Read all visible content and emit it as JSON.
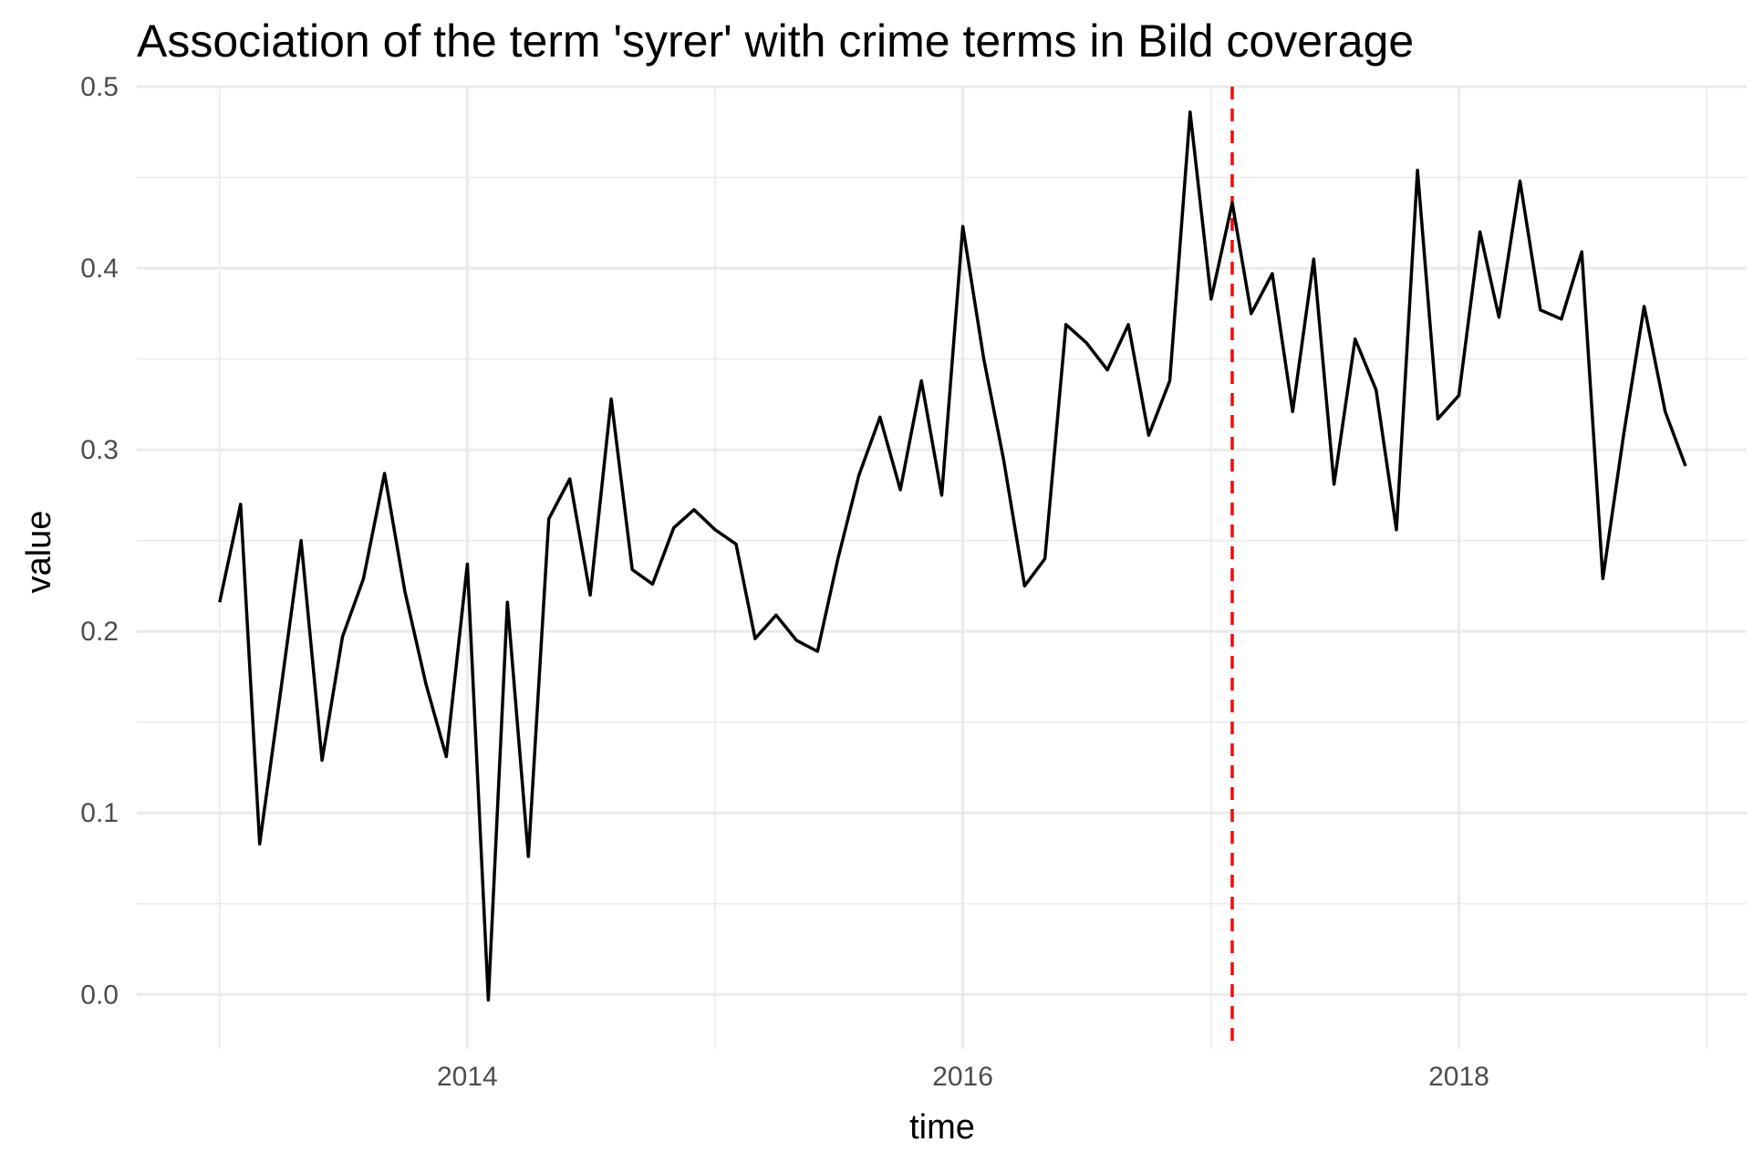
{
  "chart_data": {
    "type": "line",
    "title": "Association of the term 'syrer' with crime terms in Bild coverage",
    "xlabel": "time",
    "ylabel": "value",
    "xlim": [
      "2012-09-01",
      "2019-03-01"
    ],
    "ylim": [
      -0.03,
      0.5
    ],
    "x_ticks": [
      {
        "date": "2014-01-01",
        "label": "2014"
      },
      {
        "date": "2016-01-01",
        "label": "2016"
      },
      {
        "date": "2018-01-01",
        "label": "2018"
      }
    ],
    "y_ticks": [
      {
        "value": 0.0,
        "label": "0.0"
      },
      {
        "value": 0.1,
        "label": "0.1"
      },
      {
        "value": 0.2,
        "label": "0.2"
      },
      {
        "value": 0.3,
        "label": "0.3"
      },
      {
        "value": 0.4,
        "label": "0.4"
      },
      {
        "value": 0.5,
        "label": "0.5"
      }
    ],
    "grid": true,
    "legend": "none",
    "line_color": "#000000",
    "vertical_reference": {
      "date": "2017-02-01",
      "color": "#ff0000",
      "style": "dashed"
    },
    "series": [
      {
        "x": [
          "2013-01-01",
          "2013-02-01",
          "2013-03-01",
          "2013-04-01",
          "2013-05-01",
          "2013-06-01",
          "2013-07-01",
          "2013-08-01",
          "2013-09-01",
          "2013-10-01",
          "2013-11-01",
          "2013-12-01",
          "2014-01-01",
          "2014-02-01",
          "2014-03-01",
          "2014-04-01",
          "2014-05-01",
          "2014-06-01",
          "2014-07-01",
          "2014-08-01",
          "2014-09-01",
          "2014-10-01",
          "2014-11-01",
          "2014-12-01",
          "2015-01-01",
          "2015-02-01",
          "2015-03-01",
          "2015-04-01",
          "2015-05-01",
          "2015-06-01",
          "2015-07-01",
          "2015-08-01",
          "2015-09-01",
          "2015-10-01",
          "2015-11-01",
          "2015-12-01",
          "2016-01-01",
          "2016-02-01",
          "2016-03-01",
          "2016-04-01",
          "2016-05-01",
          "2016-06-01",
          "2016-07-01",
          "2016-08-01",
          "2016-09-01",
          "2016-10-01",
          "2016-11-01",
          "2016-12-01",
          "2017-01-01",
          "2017-02-01",
          "2017-03-01",
          "2017-04-01",
          "2017-05-01",
          "2017-06-01",
          "2017-07-01",
          "2017-08-01",
          "2017-09-01",
          "2017-10-01",
          "2017-11-01",
          "2017-12-01",
          "2018-01-01",
          "2018-02-01",
          "2018-03-01",
          "2018-04-01",
          "2018-05-01",
          "2018-06-01",
          "2018-07-01",
          "2018-08-01",
          "2018-09-01",
          "2018-10-01",
          "2018-11-01",
          "2018-12-01"
        ],
        "values": [
          0.216,
          0.27,
          0.083,
          0.167,
          0.25,
          0.129,
          0.197,
          0.229,
          0.287,
          0.222,
          0.171,
          0.131,
          0.237,
          -0.003,
          0.216,
          0.076,
          0.262,
          0.284,
          0.22,
          0.328,
          0.234,
          0.226,
          0.257,
          0.267,
          0.256,
          0.248,
          0.196,
          0.209,
          0.195,
          0.189,
          0.24,
          0.286,
          0.318,
          0.278,
          0.338,
          0.275,
          0.423,
          0.35,
          0.295,
          0.225,
          0.24,
          0.369,
          0.359,
          0.344,
          0.369,
          0.308,
          0.338,
          0.486,
          0.383,
          0.436,
          0.375,
          0.397,
          0.321,
          0.405,
          0.281,
          0.361,
          0.333,
          0.256,
          0.454,
          0.317,
          0.33,
          0.42,
          0.373,
          0.448,
          0.377,
          0.372,
          0.409,
          0.229,
          0.309,
          0.379,
          0.321,
          0.291
        ]
      }
    ]
  }
}
